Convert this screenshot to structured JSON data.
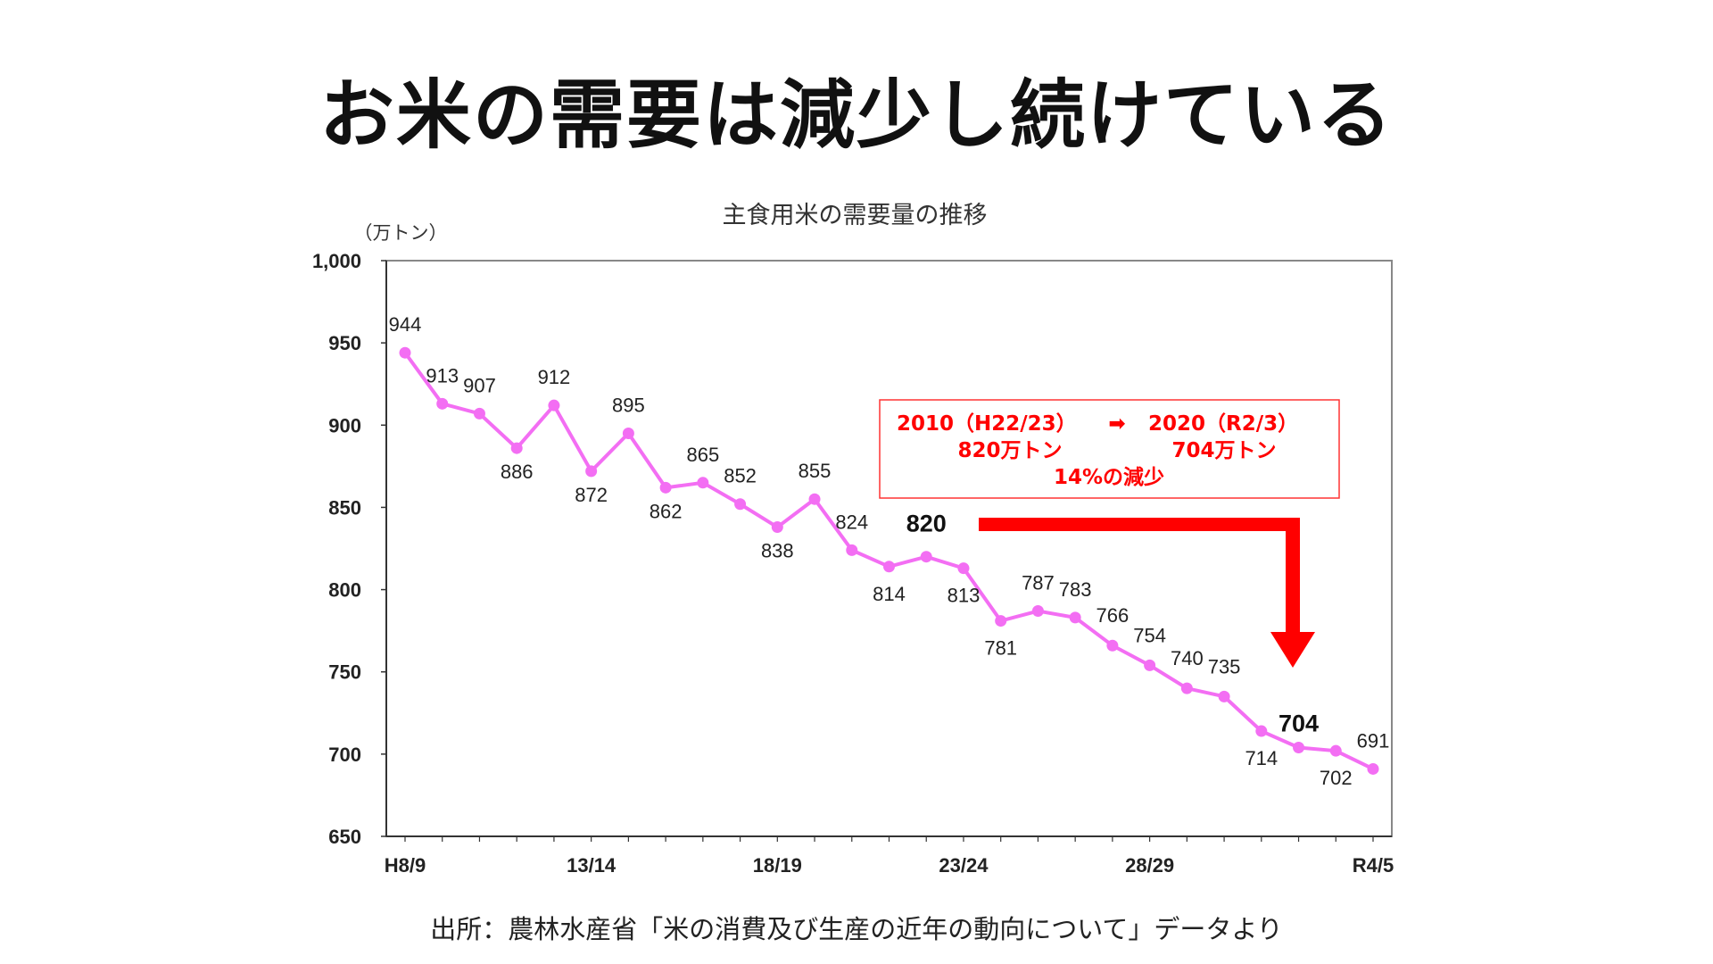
{
  "slide": {
    "title": "お米の需要は減少し続けている",
    "source": "出所：農林水産省「米の消費及び生産の近年の動向について」データより"
  },
  "chart_data": {
    "type": "line",
    "title": "主食用米の需要量の推移",
    "ylabel": "（万トン）",
    "xlabel": "",
    "ylim": [
      650,
      1000
    ],
    "yticks": [
      "650",
      "700",
      "750",
      "800",
      "850",
      "900",
      "950",
      "1,000"
    ],
    "ytick_values": [
      650,
      700,
      750,
      800,
      850,
      900,
      950,
      1000
    ],
    "xtick_labels": [
      {
        "index": 0,
        "label": "H8/9"
      },
      {
        "index": 5,
        "label": "13/14"
      },
      {
        "index": 10,
        "label": "18/19"
      },
      {
        "index": 15,
        "label": "23/24"
      },
      {
        "index": 20,
        "label": "28/29"
      },
      {
        "index": 26,
        "label": "R4/5"
      }
    ],
    "values": [
      944,
      913,
      907,
      886,
      912,
      872,
      895,
      862,
      865,
      852,
      838,
      855,
      824,
      814,
      820,
      813,
      781,
      787,
      783,
      766,
      754,
      740,
      735,
      714,
      704,
      702,
      691
    ],
    "highlighted": [
      14,
      24
    ],
    "line_color": "#f36ef3",
    "grid": false,
    "legend": "none",
    "annotation": {
      "line1_left": "2010（H22/23）",
      "arrow": "➡",
      "line1_right": "2020（R2/3）",
      "line2_left": "820万トン",
      "line2_right": "704万トン",
      "line3": "14%の減少",
      "color": "#ff0000"
    }
  }
}
